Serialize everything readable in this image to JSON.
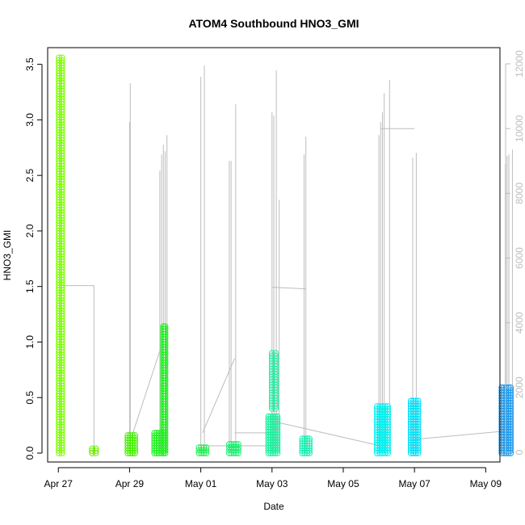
{
  "chart_data": {
    "type": "scatter",
    "title": "ATOM4 Southbound HNO3_GMI",
    "xlabel": "Date",
    "ylabel": "HNO3_GMI",
    "x_axis": {
      "range_days": [
        -0.3,
        12.4
      ],
      "ticks": [
        {
          "day": 0,
          "label": "Apr 27"
        },
        {
          "day": 2,
          "label": "Apr 29"
        },
        {
          "day": 4,
          "label": "May 01"
        },
        {
          "day": 6,
          "label": "May 03"
        },
        {
          "day": 8,
          "label": "May 05"
        },
        {
          "day": 10,
          "label": "May 07"
        },
        {
          "day": 12,
          "label": "May 09"
        }
      ]
    },
    "y_axis": {
      "range": [
        -0.08,
        3.65
      ],
      "ticks": [
        "0.0",
        "0.5",
        "1.0",
        "1.5",
        "2.0",
        "2.5",
        "3.0",
        "3.5"
      ]
    },
    "y2_axis": {
      "range": [
        -300,
        12500
      ],
      "ticks": [
        "0",
        "2000",
        "4000",
        "6000",
        "8000",
        "10000",
        "12000"
      ],
      "color": "#bdbdbd"
    },
    "series": [
      {
        "flight_day": 0.05,
        "segments": [
          {
            "x0": 0.02,
            "x1": 0.1,
            "y_min": 0.0,
            "y_max": 3.56
          }
        ],
        "color": "#7cfc00"
      },
      {
        "flight_day": 1.0,
        "segments": [
          {
            "x0": 0.95,
            "x1": 1.05,
            "y_min": 0.0,
            "y_max": 0.04
          }
        ],
        "color": "#6ef000"
      },
      {
        "flight_day": 2.05,
        "segments": [
          {
            "x0": 1.95,
            "x1": 2.15,
            "y_min": 0.0,
            "y_max": 0.16
          }
        ],
        "color": "#44f000"
      },
      {
        "flight_day": 2.9,
        "segments": [
          {
            "x0": 2.7,
            "x1": 2.95,
            "y_min": 0.0,
            "y_max": 0.18
          },
          {
            "x0": 2.95,
            "x1": 3.0,
            "y_min": 0.0,
            "y_max": 1.14
          }
        ],
        "color": "#22f022"
      },
      {
        "flight_day": 4.05,
        "segments": [
          {
            "x0": 3.95,
            "x1": 4.15,
            "y_min": 0.0,
            "y_max": 0.05
          }
        ],
        "color": "#1ef050"
      },
      {
        "flight_day": 4.9,
        "segments": [
          {
            "x0": 4.8,
            "x1": 5.05,
            "y_min": 0.0,
            "y_max": 0.08
          }
        ],
        "color": "#1ef070"
      },
      {
        "flight_day": 6.05,
        "segments": [
          {
            "x0": 5.9,
            "x1": 6.15,
            "y_min": 0.0,
            "y_max": 0.33
          },
          {
            "x0": 6.0,
            "x1": 6.1,
            "y_min": 0.4,
            "y_max": 0.9
          }
        ],
        "color": "#1ef0a0"
      },
      {
        "flight_day": 6.95,
        "segments": [
          {
            "x0": 6.85,
            "x1": 7.05,
            "y_min": 0.0,
            "y_max": 0.13
          }
        ],
        "color": "#1ef0b4"
      },
      {
        "flight_day": 9.05,
        "segments": [
          {
            "x0": 8.95,
            "x1": 9.25,
            "y_min": 0.0,
            "y_max": 0.42
          }
        ],
        "color": "#00f0f0"
      },
      {
        "flight_day": 10.0,
        "segments": [
          {
            "x0": 9.9,
            "x1": 10.1,
            "y_min": 0.0,
            "y_max": 0.47
          }
        ],
        "color": "#00e0f8"
      },
      {
        "flight_day": 12.55,
        "segments": [
          {
            "x0": 12.45,
            "x1": 12.7,
            "y_min": 0.0,
            "y_max": 0.59
          }
        ],
        "color": "#1e9cf0"
      }
    ],
    "altitude_series": {
      "color": "#bdbdbd",
      "spikes": [
        {
          "x": 2.02,
          "alt": 11400
        },
        {
          "x": 2.0,
          "alt": 10200
        },
        {
          "x": 2.85,
          "alt": 8700
        },
        {
          "x": 2.9,
          "alt": 9200
        },
        {
          "x": 2.95,
          "alt": 9500
        },
        {
          "x": 3.05,
          "alt": 9800
        },
        {
          "x": 3.0,
          "alt": 9300
        },
        {
          "x": 4.0,
          "alt": 11600
        },
        {
          "x": 4.1,
          "alt": 11950
        },
        {
          "x": 4.8,
          "alt": 9000
        },
        {
          "x": 4.85,
          "alt": 9000
        },
        {
          "x": 4.98,
          "alt": 10750
        },
        {
          "x": 6.0,
          "alt": 10500
        },
        {
          "x": 6.05,
          "alt": 10400
        },
        {
          "x": 6.12,
          "alt": 11800
        },
        {
          "x": 6.2,
          "alt": 7800
        },
        {
          "x": 6.9,
          "alt": 9200
        },
        {
          "x": 6.95,
          "alt": 9750
        },
        {
          "x": 9.0,
          "alt": 9800
        },
        {
          "x": 9.05,
          "alt": 10200
        },
        {
          "x": 9.1,
          "alt": 10500
        },
        {
          "x": 9.15,
          "alt": 11100
        },
        {
          "x": 9.3,
          "alt": 11500
        },
        {
          "x": 9.95,
          "alt": 9100
        },
        {
          "x": 10.05,
          "alt": 9250
        },
        {
          "x": 12.55,
          "alt": 8900
        },
        {
          "x": 12.6,
          "alt": 9150
        },
        {
          "x": 12.65,
          "alt": 9200
        },
        {
          "x": 12.75,
          "alt": 9350
        }
      ],
      "connectors": [
        {
          "x": [
            0.05,
            1.0,
            1.0
          ],
          "alt": [
            5150,
            5150,
            0
          ]
        },
        {
          "x": [
            2.05,
            2.9
          ],
          "alt": [
            450,
            3300
          ]
        },
        {
          "x": [
            3.0,
            3.0
          ],
          "alt": [
            180,
            180
          ]
        },
        {
          "x": [
            4.05,
            4.95
          ],
          "alt": [
            600,
            2900
          ]
        },
        {
          "x": [
            4.95,
            6.05
          ],
          "alt": [
            600,
            600
          ]
        },
        {
          "x": [
            6.0,
            6.95
          ],
          "alt": [
            5100,
            5050
          ]
        },
        {
          "x": [
            6.05,
            9.05
          ],
          "alt": [
            950,
            200
          ]
        },
        {
          "x": [
            9.05,
            10.0
          ],
          "alt": [
            10000,
            10000
          ]
        },
        {
          "x": [
            10.0,
            12.5
          ],
          "alt": [
            400,
            650
          ]
        },
        {
          "x": [
            4.05,
            6.05
          ],
          "alt": [
            200,
            200
          ]
        }
      ]
    }
  }
}
